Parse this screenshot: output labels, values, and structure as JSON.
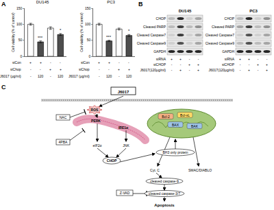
{
  "panel_labels": [
    "A",
    "B",
    "C"
  ],
  "chart_data": [
    {
      "type": "bar",
      "title": "DU145",
      "y_label": "Cell viability (% of control)",
      "categories": [
        null,
        null,
        null,
        null
      ],
      "values": [
        100,
        45,
        88,
        68
      ],
      "errors": [
        3,
        3,
        4,
        3
      ],
      "colors": [
        "#ffffff",
        "#4d4d4d",
        "#ffffff",
        "#4d4d4d"
      ],
      "ylim": [
        0,
        150
      ],
      "yticks": [
        0,
        50,
        100,
        150
      ],
      "grid": false,
      "tick_labels": "y",
      "annotations": [
        {
          "index": 1,
          "text": "***"
        },
        {
          "index": 3,
          "text": "*"
        }
      ],
      "condition_table": [
        {
          "label": "siCon",
          "marks": [
            "+",
            "+",
            "-",
            "-"
          ]
        },
        {
          "label": "siChop",
          "marks": [
            "-",
            "-",
            "+",
            "+"
          ]
        },
        {
          "label": "J6017 (μg/ml)",
          "marks": [
            "-",
            "120",
            "-",
            "120"
          ]
        }
      ]
    },
    {
      "type": "bar",
      "title": "PC3",
      "y_label": "Cell viability (% of control)",
      "categories": [
        null,
        null,
        null,
        null
      ],
      "values": [
        100,
        48,
        85,
        65
      ],
      "errors": [
        3,
        2,
        3,
        3
      ],
      "colors": [
        "#ffffff",
        "#4d4d4d",
        "#ffffff",
        "#4d4d4d"
      ],
      "ylim": [
        0,
        150
      ],
      "yticks": [
        0,
        50,
        100,
        150
      ],
      "grid": false,
      "tick_labels": "y",
      "annotations": [
        {
          "index": 1,
          "text": "***"
        },
        {
          "index": 3,
          "text": "*"
        }
      ],
      "condition_table": [
        {
          "label": "siCon",
          "marks": [
            "+",
            "+",
            "-",
            "-"
          ]
        },
        {
          "label": "siChop",
          "marks": [
            "-",
            "-",
            "+",
            "+"
          ]
        },
        {
          "label": "J6017 (μg/ml)",
          "marks": [
            "-",
            "120",
            "-",
            "120"
          ]
        }
      ]
    }
  ],
  "panel_b": {
    "blots": [
      {
        "title": "DU145",
        "rows": [
          {
            "label": "CHOP",
            "bands": [
              0.2,
              0.9,
              0.1,
              0.3
            ]
          },
          {
            "label": "Cleaved PARP",
            "bands": [
              0.2,
              0.8,
              0.2,
              0.4
            ]
          },
          {
            "label": "Cleaved Caspase7",
            "bands": [
              0.1,
              0.8,
              0.1,
              0.3
            ]
          },
          {
            "label": "Cleaved Caspase9",
            "bands": [
              0.1,
              0.7,
              0.1,
              0.3
            ]
          },
          {
            "label": "GAPDH",
            "bands": [
              0.9,
              0.9,
              0.9,
              0.9
            ]
          }
        ]
      },
      {
        "title": "PC3",
        "rows": [
          {
            "label": "CHOP",
            "bands": [
              0.2,
              0.9,
              0.1,
              0.4
            ]
          },
          {
            "label": "Cleaved PARP",
            "bands": [
              0.3,
              0.8,
              0.2,
              0.4
            ]
          },
          {
            "label": "Cleaved Caspase7",
            "bands": [
              0.1,
              0.7,
              0.1,
              0.3
            ]
          },
          {
            "label": "Cleaved Caspase9",
            "bands": [
              0.2,
              0.7,
              0.2,
              0.3
            ]
          },
          {
            "label": "GAPDH",
            "bands": [
              0.9,
              0.9,
              0.9,
              0.9
            ]
          }
        ]
      }
    ],
    "lanes": [
      {
        "label": "siRNA",
        "marks": [
          "+",
          "+",
          "-",
          "-"
        ]
      },
      {
        "label": "siCHOP",
        "marks": [
          "-",
          "-",
          "+",
          "+"
        ]
      },
      {
        "label": "J6017(120μg/ml)",
        "marks": [
          "-",
          "+",
          "-",
          "+"
        ]
      }
    ]
  },
  "panel_c": {
    "nodes": {
      "j6017": "J6017",
      "nac": "NAC",
      "ros": "ROS",
      "pba": "4PBA",
      "perk": "PERK",
      "ire": "IRE1α",
      "eif": "eIF2α",
      "jnk": "JNK",
      "chop": "CHOP",
      "bcl2": "Bcl-2",
      "bclxl": "Bcl-xL",
      "bax": "BAX",
      "bak": "BAK",
      "bh3": "BH3 only protein",
      "cytc": "Cyt. C",
      "smac": "SMAC/DIABLO",
      "casp9": "cleaved caspase-9",
      "zvad": "Z-VAD",
      "casp37": "cleaved caspase-3/7",
      "apop": "Apoptosis"
    }
  }
}
